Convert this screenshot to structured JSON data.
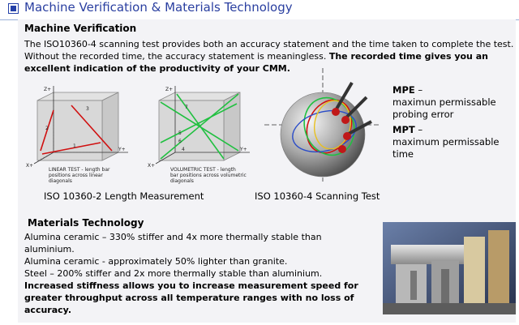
{
  "header": {
    "title": "Machine Verification & Materials Technology"
  },
  "verification": {
    "heading": "Machine Verification",
    "para_plain": "The ISO10360-4 scanning test provides both an accuracy statement and the time taken to complete the test. Without the recorded time, the accuracy statement is meaningless. ",
    "para_bold": "The recorded time gives you an excellent indication of the productivity of your CMM."
  },
  "diagram_linear": {
    "axis_z": "Z+",
    "axis_y": "Y+",
    "axis_x": "X+",
    "labels": [
      "1",
      "2",
      "3"
    ],
    "note_line1": "LINEAR TEST - length bar",
    "note_line2": "positions across linear",
    "note_line3": "diagonals",
    "caption": "ISO 10360-2 Length Measurement"
  },
  "diagram_volumetric": {
    "axis_z": "Z+",
    "axis_y": "Y+",
    "axis_x": "X+",
    "labels": [
      "4",
      "5",
      "6",
      "7"
    ],
    "note_line1": "VOLUMETRIC TEST - length",
    "note_line2": "bar positions across volumetric",
    "note_line3": "diagonals"
  },
  "diagram_scanning": {
    "caption": "ISO 10360-4 Scanning Test"
  },
  "definitions": {
    "mpe_term": "MPE",
    "mpe_text": "maximun permissable probing error",
    "mpt_term": "MPT",
    "mpt_text": "maximum permissable time"
  },
  "materials": {
    "heading": "Materials Technology",
    "line1": "Alumina ceramic – 330% stiffer and 4x more thermally stable than aluminium.",
    "line2": "Alumina ceramic - approximately 50% lighter than granite.",
    "line3": "Steel – 200% stiffer and 2x more thermally stable than aluminium.",
    "bold": "Increased stiffness allows you to increase measurement speed for greater throughput across all temperature ranges with no loss of accuracy."
  },
  "colors": {
    "title": "#2a3fa0",
    "panel": "#f3f3f6",
    "red": "#d01010",
    "green": "#20c040"
  }
}
